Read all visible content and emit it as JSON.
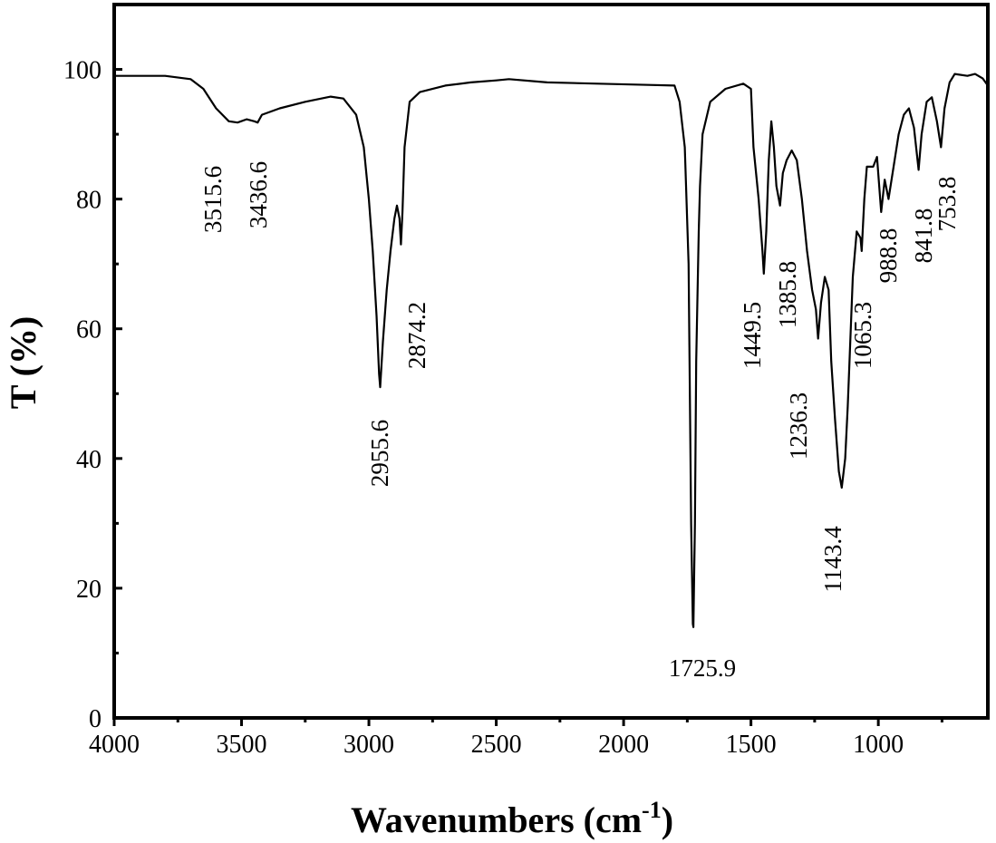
{
  "chart_data": {
    "type": "line",
    "xlabel": {
      "text": "Wavenumbers (cm",
      "sup": "-1",
      "end": ")"
    },
    "ylabel": "T (%)",
    "xlim": [
      4000,
      570
    ],
    "ylim": [
      0,
      110
    ],
    "xticks": [
      4000,
      3500,
      3000,
      2500,
      2000,
      1500,
      1000
    ],
    "yticks": [
      0,
      20,
      40,
      60,
      80,
      100
    ],
    "color": "#000000",
    "x": [
      4000,
      3800,
      3700,
      3650,
      3600,
      3550,
      3515.6,
      3480,
      3450,
      3436.6,
      3420,
      3350,
      3250,
      3150,
      3100,
      3050,
      3020,
      3000,
      2985,
      2970,
      2960,
      2955.6,
      2945,
      2930,
      2915,
      2900,
      2890,
      2880,
      2874.2,
      2868,
      2860,
      2840,
      2800,
      2700,
      2600,
      2500,
      2450,
      2300,
      2100,
      1900,
      1800,
      1780,
      1760,
      1745,
      1735,
      1728,
      1725.9,
      1720,
      1715,
      1705,
      1700,
      1690,
      1660,
      1600,
      1530,
      1500,
      1490,
      1470,
      1455,
      1449.5,
      1440,
      1430,
      1420,
      1410,
      1400,
      1385.8,
      1375,
      1360,
      1340,
      1320,
      1300,
      1280,
      1260,
      1245,
      1236.3,
      1225,
      1210,
      1195,
      1185,
      1170,
      1155,
      1143.4,
      1130,
      1120,
      1110,
      1100,
      1085,
      1070,
      1065.3,
      1055,
      1045,
      1020,
      1005,
      988.8,
      975,
      960,
      940,
      920,
      900,
      880,
      860,
      841.8,
      830,
      810,
      790,
      770,
      753.8,
      740,
      720,
      700,
      650,
      620,
      590,
      570
    ],
    "values": [
      99,
      99,
      98.5,
      97,
      94,
      92,
      91.8,
      92.3,
      92,
      91.8,
      93,
      94,
      95,
      95.8,
      95.5,
      93,
      88,
      80,
      72,
      62,
      53,
      51,
      58,
      66,
      72,
      77,
      79,
      77,
      73,
      78,
      88,
      95,
      96.5,
      97.5,
      98,
      98.3,
      98.5,
      98,
      97.8,
      97.6,
      97.5,
      95,
      88,
      70,
      30,
      14.5,
      14,
      30,
      55,
      75,
      82,
      90,
      95,
      97,
      97.8,
      97,
      88,
      80,
      72,
      68.5,
      75,
      86,
      92,
      88,
      82,
      79,
      84,
      86,
      87.5,
      86,
      80,
      72,
      66,
      63,
      58.5,
      64,
      68,
      66,
      55,
      46,
      38,
      35.5,
      40,
      48,
      58,
      68,
      75,
      74,
      72,
      80,
      85,
      85,
      86.5,
      78,
      83,
      80,
      85,
      90,
      93,
      94,
      91,
      84.5,
      90,
      95,
      95.7,
      92,
      88,
      94,
      98,
      99.3,
      99,
      99.3,
      98.6,
      97.5
    ],
    "peak_labels": [
      3515.6,
      3436.6,
      2955.6,
      2874.2,
      1725.9,
      1449.5,
      1385.8,
      1236.3,
      1143.4,
      1065.3,
      988.8,
      841.8,
      753.8
    ]
  }
}
